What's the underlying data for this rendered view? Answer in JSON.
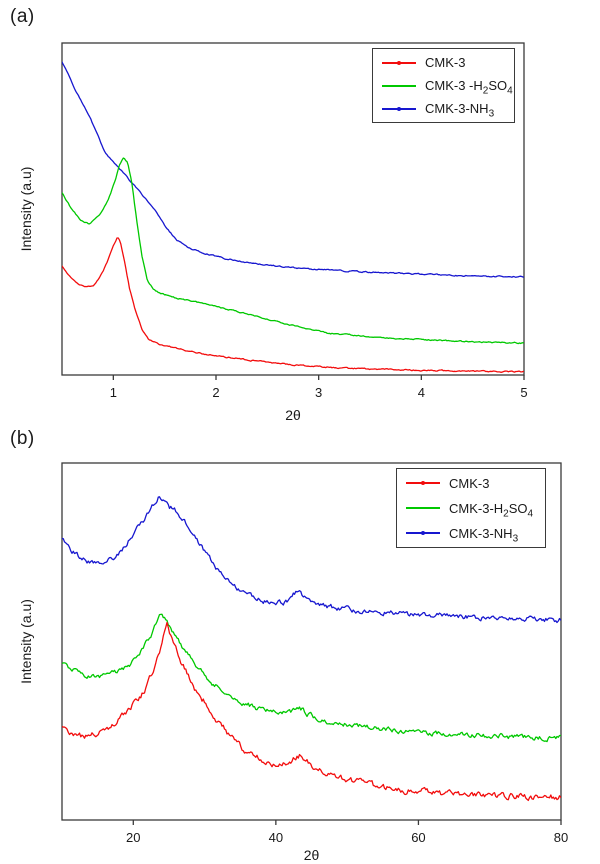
{
  "figure": {
    "background": "#ffffff",
    "frame_color": "#3a3a3a",
    "text_color": "#1a1a1a"
  },
  "chart_data": [
    {
      "id": "a",
      "type": "line",
      "panel_label": "(a)",
      "xlabel": "2θ",
      "ylabel": "Intensity (a.u)",
      "xlim": [
        0.5,
        5
      ],
      "x_ticks": [
        1,
        2,
        3,
        4,
        5
      ],
      "ylim": [
        0,
        1
      ],
      "grid": false,
      "legend_position": "top-right",
      "series": [
        {
          "key": "cmk3-a",
          "name": "CMK-3",
          "color": "#f20d0d",
          "marker": true,
          "noise": 0.6,
          "seed": 11,
          "name_parts": [
            {
              "t": "CMK-3",
              "sub": false
            }
          ],
          "points": [
            [
              0.5,
              0.328
            ],
            [
              0.58,
              0.295
            ],
            [
              0.66,
              0.274
            ],
            [
              0.72,
              0.265
            ],
            [
              0.8,
              0.268
            ],
            [
              0.87,
              0.295
            ],
            [
              0.94,
              0.34
            ],
            [
              0.99,
              0.383
            ],
            [
              1.04,
              0.416
            ],
            [
              1.07,
              0.398
            ],
            [
              1.11,
              0.34
            ],
            [
              1.16,
              0.256
            ],
            [
              1.22,
              0.19
            ],
            [
              1.28,
              0.136
            ],
            [
              1.35,
              0.105
            ],
            [
              1.45,
              0.093
            ],
            [
              1.6,
              0.081
            ],
            [
              1.94,
              0.06
            ],
            [
              2.35,
              0.044
            ],
            [
              2.75,
              0.03
            ],
            [
              3.3,
              0.02
            ],
            [
              4.0,
              0.014
            ],
            [
              5.0,
              0.009
            ]
          ]
        },
        {
          "key": "cmk3-h2so4-a",
          "name": "CMK-3 -H2SO4",
          "color": "#00c800",
          "marker": false,
          "noise": 0.6,
          "seed": 12,
          "name_parts": [
            {
              "t": "CMK-3 -H",
              "sub": false
            },
            {
              "t": "2",
              "sub": true
            },
            {
              "t": "SO",
              "sub": false
            },
            {
              "t": "4",
              "sub": true
            }
          ],
          "points": [
            [
              0.5,
              0.548
            ],
            [
              0.58,
              0.506
            ],
            [
              0.68,
              0.467
            ],
            [
              0.77,
              0.455
            ],
            [
              0.87,
              0.482
            ],
            [
              0.95,
              0.527
            ],
            [
              1.02,
              0.587
            ],
            [
              1.06,
              0.632
            ],
            [
              1.1,
              0.654
            ],
            [
              1.14,
              0.639
            ],
            [
              1.18,
              0.578
            ],
            [
              1.23,
              0.458
            ],
            [
              1.28,
              0.355
            ],
            [
              1.33,
              0.286
            ],
            [
              1.39,
              0.259
            ],
            [
              1.45,
              0.247
            ],
            [
              1.6,
              0.233
            ],
            [
              1.94,
              0.211
            ],
            [
              2.33,
              0.181
            ],
            [
              2.72,
              0.151
            ],
            [
              3.1,
              0.126
            ],
            [
              3.5,
              0.115
            ],
            [
              3.9,
              0.108
            ],
            [
              4.4,
              0.101
            ],
            [
              5.0,
              0.096
            ]
          ]
        },
        {
          "key": "cmk3-nh3-a",
          "name": "CMK-3-NH3",
          "color": "#1717cf",
          "marker": true,
          "noise": 0.6,
          "seed": 13,
          "name_parts": [
            {
              "t": "CMK-3-NH",
              "sub": false
            },
            {
              "t": "3",
              "sub": true
            }
          ],
          "points": [
            [
              0.5,
              0.943
            ],
            [
              0.63,
              0.858
            ],
            [
              0.77,
              0.777
            ],
            [
              0.92,
              0.669
            ],
            [
              1.02,
              0.633
            ],
            [
              1.1,
              0.608
            ],
            [
              1.2,
              0.572
            ],
            [
              1.31,
              0.533
            ],
            [
              1.41,
              0.497
            ],
            [
              1.52,
              0.44
            ],
            [
              1.62,
              0.407
            ],
            [
              1.72,
              0.385
            ],
            [
              1.85,
              0.37
            ],
            [
              2.0,
              0.357
            ],
            [
              2.2,
              0.344
            ],
            [
              2.5,
              0.331
            ],
            [
              2.8,
              0.322
            ],
            [
              3.1,
              0.316
            ],
            [
              3.5,
              0.31
            ],
            [
              4.0,
              0.304
            ],
            [
              4.5,
              0.298
            ],
            [
              5.0,
              0.295
            ]
          ]
        }
      ]
    },
    {
      "id": "b",
      "type": "line",
      "panel_label": "(b)",
      "xlabel": "2θ",
      "ylabel": "Intensity (a.u)",
      "xlim": [
        10,
        80
      ],
      "x_ticks": [
        20,
        40,
        60,
        80
      ],
      "ylim": [
        0,
        1
      ],
      "grid": false,
      "legend_position": "top-right",
      "series": [
        {
          "key": "cmk3-b",
          "name": "CMK-3",
          "color": "#f20d0d",
          "marker": true,
          "noise": 3.0,
          "seed": 21,
          "name_parts": [
            {
              "t": "CMK-3",
              "sub": false
            }
          ],
          "points": [
            [
              10,
              0.261
            ],
            [
              11.8,
              0.238
            ],
            [
              13.6,
              0.232
            ],
            [
              16,
              0.252
            ],
            [
              18.4,
              0.289
            ],
            [
              20.7,
              0.336
            ],
            [
              22.1,
              0.384
            ],
            [
              23,
              0.429
            ],
            [
              24,
              0.49
            ],
            [
              24.4,
              0.527
            ],
            [
              24.7,
              0.546
            ],
            [
              25.9,
              0.485
            ],
            [
              26.8,
              0.44
            ],
            [
              27.7,
              0.401
            ],
            [
              28.7,
              0.364
            ],
            [
              30.1,
              0.328
            ],
            [
              31,
              0.3
            ],
            [
              31.9,
              0.272
            ],
            [
              33.3,
              0.244
            ],
            [
              34.5,
              0.216
            ],
            [
              36.1,
              0.188
            ],
            [
              38,
              0.168
            ],
            [
              39.9,
              0.154
            ],
            [
              41.3,
              0.16
            ],
            [
              43.4,
              0.182
            ],
            [
              45.5,
              0.146
            ],
            [
              47.6,
              0.126
            ],
            [
              51.8,
              0.104
            ],
            [
              57.4,
              0.084
            ],
            [
              64.4,
              0.073
            ],
            [
              71.4,
              0.067
            ],
            [
              80,
              0.064
            ]
          ]
        },
        {
          "key": "cmk3-h2so4-b",
          "name": "CMK-3-H2SO4",
          "color": "#00c800",
          "marker": false,
          "noise": 2.4,
          "seed": 22,
          "name_parts": [
            {
              "t": "CMK-3-H",
              "sub": false
            },
            {
              "t": "2",
              "sub": true
            },
            {
              "t": "SO",
              "sub": false
            },
            {
              "t": "4",
              "sub": true
            }
          ],
          "points": [
            [
              10,
              0.44
            ],
            [
              11.5,
              0.42
            ],
            [
              13.2,
              0.403
            ],
            [
              14.6,
              0.398
            ],
            [
              16.3,
              0.403
            ],
            [
              18,
              0.415
            ],
            [
              19.6,
              0.437
            ],
            [
              21,
              0.471
            ],
            [
              22.3,
              0.51
            ],
            [
              23,
              0.538
            ],
            [
              23.7,
              0.574
            ],
            [
              24.3,
              0.566
            ],
            [
              25,
              0.546
            ],
            [
              25.9,
              0.518
            ],
            [
              26.8,
              0.49
            ],
            [
              27.7,
              0.462
            ],
            [
              28.7,
              0.434
            ],
            [
              29.9,
              0.406
            ],
            [
              31.5,
              0.378
            ],
            [
              33.3,
              0.35
            ],
            [
              35.4,
              0.328
            ],
            [
              38,
              0.308
            ],
            [
              40.6,
              0.297
            ],
            [
              42,
              0.3
            ],
            [
              43.1,
              0.317
            ],
            [
              44.5,
              0.297
            ],
            [
              45.9,
              0.283
            ],
            [
              47.6,
              0.275
            ],
            [
              51.8,
              0.261
            ],
            [
              57.4,
              0.249
            ],
            [
              64.4,
              0.241
            ],
            [
              71.4,
              0.235
            ],
            [
              80,
              0.23
            ]
          ]
        },
        {
          "key": "cmk3-nh3-b",
          "name": "CMK-3-NH3",
          "color": "#1717cf",
          "marker": true,
          "noise": 2.4,
          "seed": 23,
          "name_parts": [
            {
              "t": "CMK-3-NH",
              "sub": false
            },
            {
              "t": "3",
              "sub": true
            }
          ],
          "points": [
            [
              10,
              0.784
            ],
            [
              11.5,
              0.751
            ],
            [
              13.2,
              0.728
            ],
            [
              14.6,
              0.72
            ],
            [
              16,
              0.728
            ],
            [
              17.2,
              0.737
            ],
            [
              18.4,
              0.756
            ],
            [
              19.8,
              0.793
            ],
            [
              21.2,
              0.832
            ],
            [
              22.1,
              0.86
            ],
            [
              23,
              0.888
            ],
            [
              23.5,
              0.902
            ],
            [
              24.4,
              0.891
            ],
            [
              25.1,
              0.877
            ],
            [
              25.9,
              0.868
            ],
            [
              26.8,
              0.849
            ],
            [
              27.7,
              0.821
            ],
            [
              28.7,
              0.793
            ],
            [
              29.6,
              0.765
            ],
            [
              30.5,
              0.737
            ],
            [
              31.5,
              0.709
            ],
            [
              32.4,
              0.686
            ],
            [
              33.3,
              0.667
            ],
            [
              34.5,
              0.65
            ],
            [
              35.7,
              0.636
            ],
            [
              37.1,
              0.622
            ],
            [
              38.9,
              0.611
            ],
            [
              40.9,
              0.608
            ],
            [
              42,
              0.616
            ],
            [
              43,
              0.644
            ],
            [
              44.1,
              0.622
            ],
            [
              45.5,
              0.608
            ],
            [
              47.6,
              0.597
            ],
            [
              51.8,
              0.585
            ],
            [
              57.4,
              0.577
            ],
            [
              64.4,
              0.571
            ],
            [
              71.4,
              0.566
            ],
            [
              80,
              0.56
            ]
          ]
        }
      ]
    }
  ]
}
